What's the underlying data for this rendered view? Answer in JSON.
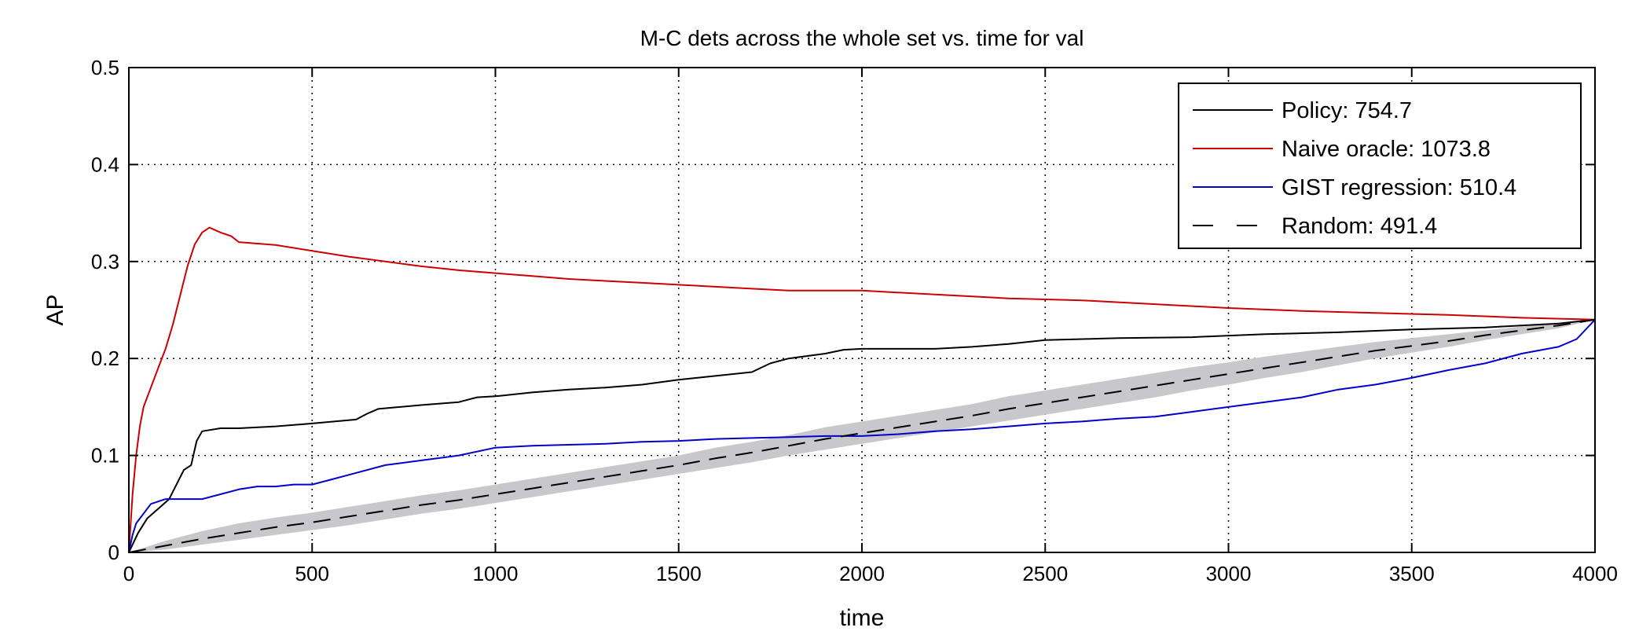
{
  "chart_data": {
    "type": "line",
    "title": "M-C dets across the whole set vs. time for val",
    "xlabel": "time",
    "ylabel": "AP",
    "xlim": [
      0,
      4000
    ],
    "ylim": [
      0,
      0.5
    ],
    "xticks": [
      0,
      500,
      1000,
      1500,
      2000,
      2500,
      3000,
      3500,
      4000
    ],
    "yticks": [
      0,
      0.1,
      0.2,
      0.3,
      0.4,
      0.5
    ],
    "xtick_labels": [
      "0",
      "500",
      "1000",
      "1500",
      "2000",
      "2500",
      "3000",
      "3500",
      "4000"
    ],
    "ytick_labels": [
      "0",
      "0.1",
      "0.2",
      "0.3",
      "0.4",
      "0.5"
    ],
    "grid": true,
    "legend_position": "top-right",
    "series": [
      {
        "name": "Policy: 754.7",
        "color": "#000000",
        "dash": "solid",
        "x": [
          0,
          25,
          50,
          80,
          110,
          130,
          150,
          170,
          185,
          200,
          250,
          300,
          400,
          500,
          620,
          650,
          680,
          800,
          900,
          950,
          1000,
          1100,
          1200,
          1300,
          1400,
          1500,
          1600,
          1700,
          1750,
          1800,
          1900,
          1950,
          2000,
          2200,
          2300,
          2400,
          2500,
          2700,
          2900,
          3100,
          3300,
          3500,
          3700,
          3900,
          4000
        ],
        "y": [
          0,
          0.02,
          0.035,
          0.045,
          0.055,
          0.07,
          0.085,
          0.09,
          0.115,
          0.125,
          0.128,
          0.128,
          0.13,
          0.133,
          0.137,
          0.143,
          0.148,
          0.152,
          0.155,
          0.16,
          0.161,
          0.165,
          0.168,
          0.17,
          0.173,
          0.178,
          0.182,
          0.186,
          0.195,
          0.2,
          0.205,
          0.209,
          0.21,
          0.21,
          0.212,
          0.215,
          0.219,
          0.221,
          0.222,
          0.225,
          0.227,
          0.23,
          0.232,
          0.236,
          0.24
        ]
      },
      {
        "name": "Naive oracle: 1073.8",
        "color": "#cc0000",
        "dash": "solid",
        "x": [
          0,
          10,
          20,
          30,
          40,
          60,
          80,
          100,
          120,
          140,
          160,
          180,
          200,
          220,
          250,
          280,
          300,
          400,
          500,
          600,
          700,
          800,
          900,
          1000,
          1100,
          1200,
          1300,
          1400,
          1500,
          1600,
          1700,
          1800,
          1900,
          2000,
          2200,
          2400,
          2600,
          2800,
          3000,
          3200,
          3400,
          3600,
          3800,
          4000
        ],
        "y": [
          0,
          0.06,
          0.1,
          0.13,
          0.15,
          0.17,
          0.19,
          0.21,
          0.235,
          0.265,
          0.295,
          0.318,
          0.33,
          0.335,
          0.33,
          0.326,
          0.32,
          0.317,
          0.311,
          0.305,
          0.3,
          0.295,
          0.291,
          0.288,
          0.285,
          0.282,
          0.28,
          0.278,
          0.276,
          0.274,
          0.272,
          0.27,
          0.27,
          0.27,
          0.266,
          0.262,
          0.26,
          0.256,
          0.252,
          0.249,
          0.247,
          0.245,
          0.242,
          0.24
        ]
      },
      {
        "name": "GIST regression: 510.4",
        "color": "#0000cc",
        "dash": "solid",
        "x": [
          0,
          10,
          20,
          40,
          60,
          100,
          150,
          200,
          250,
          300,
          350,
          400,
          450,
          500,
          550,
          600,
          700,
          800,
          900,
          1000,
          1100,
          1200,
          1300,
          1400,
          1500,
          1600,
          1700,
          1800,
          1900,
          2000,
          2100,
          2200,
          2300,
          2400,
          2500,
          2600,
          2700,
          2800,
          2900,
          3000,
          3100,
          3200,
          3300,
          3400,
          3500,
          3600,
          3700,
          3800,
          3900,
          3950,
          4000
        ],
        "y": [
          0,
          0.018,
          0.03,
          0.04,
          0.05,
          0.055,
          0.055,
          0.055,
          0.06,
          0.065,
          0.068,
          0.068,
          0.07,
          0.07,
          0.075,
          0.08,
          0.09,
          0.095,
          0.1,
          0.108,
          0.11,
          0.111,
          0.112,
          0.114,
          0.115,
          0.117,
          0.118,
          0.119,
          0.12,
          0.12,
          0.122,
          0.125,
          0.127,
          0.13,
          0.133,
          0.135,
          0.138,
          0.14,
          0.145,
          0.15,
          0.155,
          0.16,
          0.168,
          0.173,
          0.18,
          0.188,
          0.195,
          0.205,
          0.212,
          0.22,
          0.24
        ]
      },
      {
        "name": "Random: 491.4",
        "color": "#000000",
        "dash": "dashed",
        "x": [
          0,
          100,
          200,
          300,
          400,
          500,
          600,
          700,
          800,
          900,
          1000,
          1100,
          1200,
          1300,
          1400,
          1500,
          1600,
          1700,
          1800,
          1900,
          2000,
          2100,
          2200,
          2300,
          2400,
          2500,
          2600,
          2700,
          2800,
          2900,
          3000,
          3100,
          3200,
          3300,
          3400,
          3500,
          3600,
          3700,
          3800,
          3900,
          4000
        ],
        "y": [
          0,
          0.007,
          0.014,
          0.02,
          0.026,
          0.031,
          0.037,
          0.043,
          0.049,
          0.054,
          0.06,
          0.066,
          0.072,
          0.078,
          0.084,
          0.09,
          0.097,
          0.103,
          0.11,
          0.117,
          0.123,
          0.129,
          0.135,
          0.141,
          0.148,
          0.154,
          0.16,
          0.166,
          0.172,
          0.178,
          0.184,
          0.19,
          0.196,
          0.202,
          0.208,
          0.213,
          0.218,
          0.224,
          0.229,
          0.234,
          0.24
        ],
        "band_lower": [
          0,
          0.003,
          0.008,
          0.013,
          0.018,
          0.023,
          0.028,
          0.034,
          0.04,
          0.045,
          0.051,
          0.057,
          0.063,
          0.069,
          0.075,
          0.081,
          0.087,
          0.093,
          0.1,
          0.106,
          0.112,
          0.118,
          0.124,
          0.13,
          0.136,
          0.142,
          0.148,
          0.154,
          0.16,
          0.167,
          0.173,
          0.18,
          0.186,
          0.193,
          0.2,
          0.206,
          0.212,
          0.219,
          0.225,
          0.231,
          0.24
        ],
        "band_upper": [
          0,
          0.012,
          0.022,
          0.03,
          0.036,
          0.041,
          0.047,
          0.053,
          0.059,
          0.064,
          0.07,
          0.076,
          0.082,
          0.088,
          0.094,
          0.1,
          0.108,
          0.114,
          0.121,
          0.129,
          0.135,
          0.141,
          0.147,
          0.153,
          0.161,
          0.167,
          0.173,
          0.179,
          0.185,
          0.191,
          0.196,
          0.202,
          0.207,
          0.212,
          0.217,
          0.221,
          0.225,
          0.229,
          0.233,
          0.236,
          0.24
        ],
        "band_color": "#c8c8cc"
      }
    ]
  }
}
